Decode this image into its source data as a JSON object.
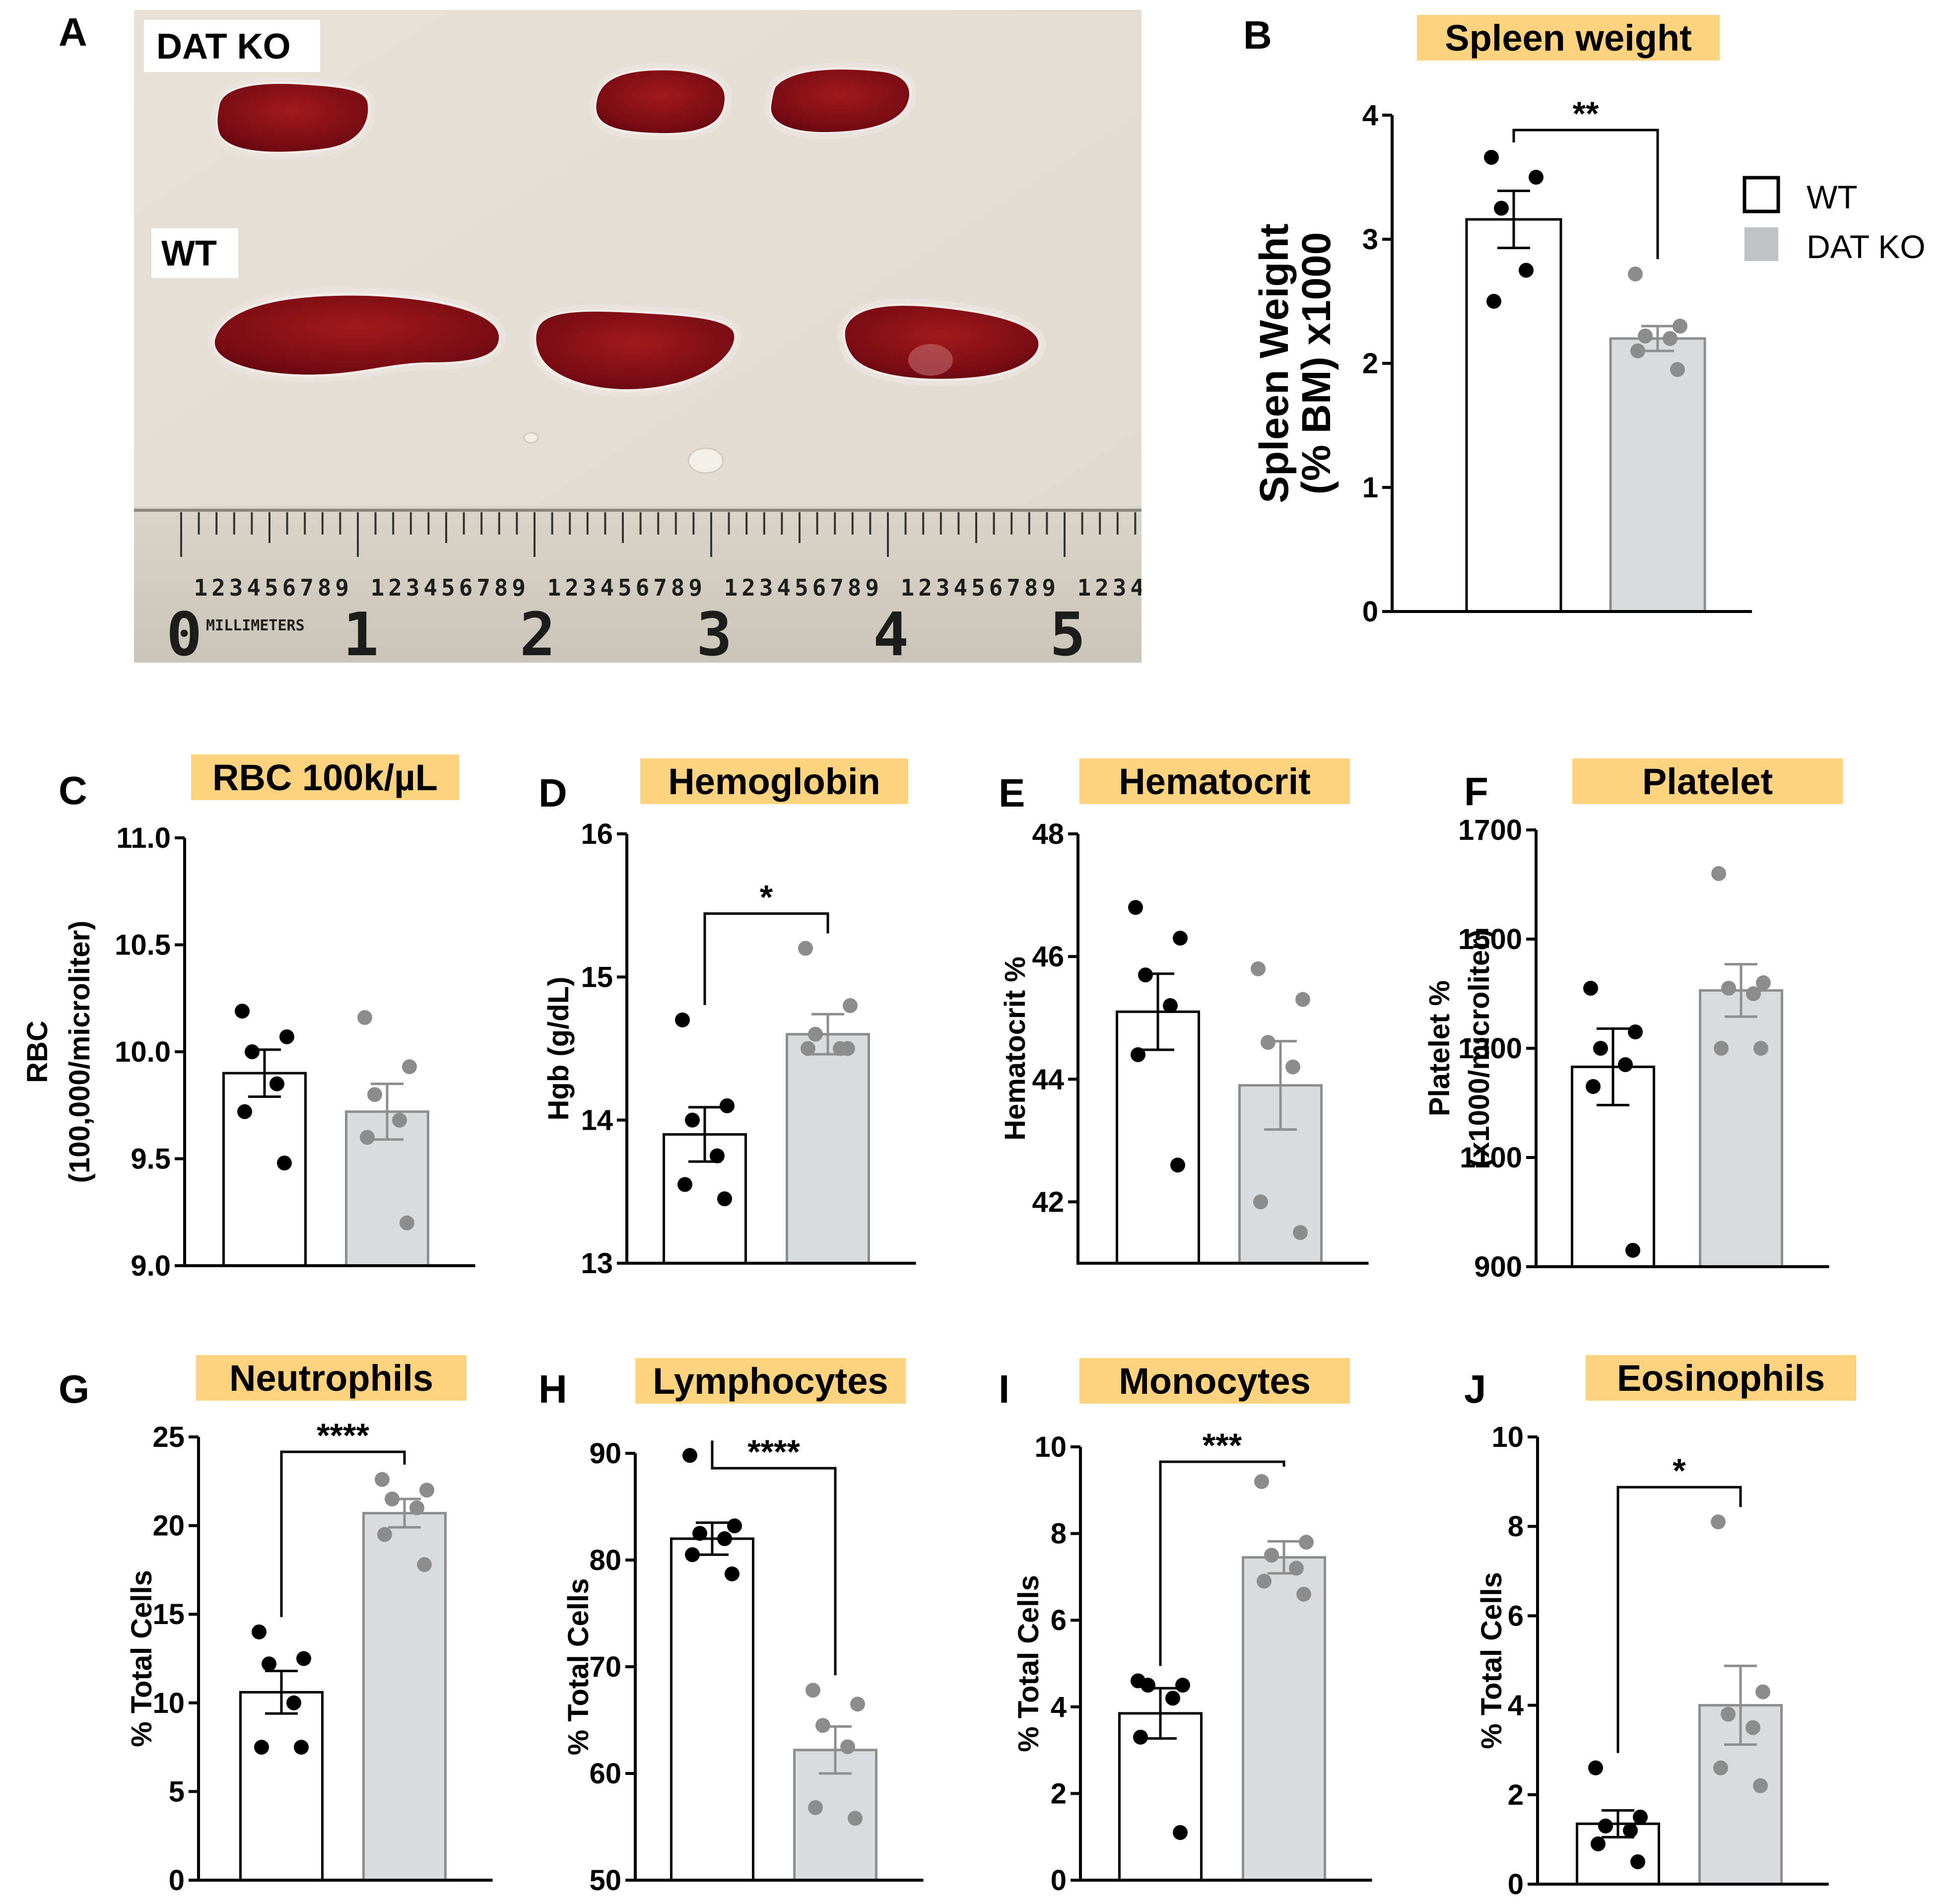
{
  "colors": {
    "wt_fill": "#ffffff",
    "ko_fill": "#d9dcdc",
    "ko_stroke": "#8e8e8e",
    "ko_dot": "#8c8c8c",
    "title_bg": "#fdd27f",
    "axis": "#000000"
  },
  "panel_a": {
    "letter": "A",
    "label_ko": "DAT KO",
    "label_wt": "WT",
    "ruler": {
      "units": "MILLIMETERS",
      "major_labels": [
        "0",
        "1",
        "2",
        "3",
        "4",
        "5"
      ],
      "minor_digits": [
        "1",
        "2",
        "3",
        "4",
        "5",
        "6",
        "7",
        "8",
        "9"
      ]
    }
  },
  "legend": {
    "wt": "WT",
    "ko": "DAT KO"
  },
  "chart_data": [
    {
      "id": "B",
      "letter": "B",
      "type": "bar",
      "title": "Spleen weight",
      "ylabel": [
        "Spleen Weight",
        "(% BM) x1000"
      ],
      "ylim": [
        0,
        4
      ],
      "yticks": [
        0,
        1,
        2,
        3,
        4
      ],
      "ytick_labels": [
        "0",
        "1",
        "2",
        "3",
        "4"
      ],
      "categories": [
        "WT",
        "DAT KO"
      ],
      "series": [
        {
          "name": "WT",
          "mean": 3.16,
          "sem": 0.23,
          "points": [
            3.66,
            3.5,
            3.25,
            2.75,
            2.5
          ]
        },
        {
          "name": "DAT KO",
          "mean": 2.2,
          "sem": 0.1,
          "points": [
            2.72,
            2.3,
            2.22,
            2.2,
            2.1,
            1.95
          ]
        }
      ],
      "significance": "**"
    },
    {
      "id": "C",
      "letter": "C",
      "type": "bar",
      "title": "RBC 100k/µL",
      "ylabel": [
        "RBC",
        "(100,000/microliter)"
      ],
      "ylim": [
        9.0,
        11.0
      ],
      "yticks": [
        9.0,
        9.5,
        10.0,
        10.5,
        11.0
      ],
      "ytick_labels": [
        "9.0",
        "9.5",
        "10.0",
        "10.5",
        "11.0"
      ],
      "categories": [
        "WT",
        "DAT KO"
      ],
      "series": [
        {
          "name": "WT",
          "mean": 9.9,
          "sem": 0.11,
          "points": [
            10.19,
            10.07,
            10.0,
            9.85,
            9.72,
            9.48
          ]
        },
        {
          "name": "DAT KO",
          "mean": 9.72,
          "sem": 0.13,
          "points": [
            10.16,
            9.93,
            9.8,
            9.68,
            9.6,
            9.2
          ]
        }
      ],
      "significance": ""
    },
    {
      "id": "D",
      "letter": "D",
      "type": "bar",
      "title": "Hemoglobin",
      "ylabel": [
        "Hgb (g/dL)"
      ],
      "ylim": [
        13,
        16
      ],
      "yticks": [
        13,
        14,
        15,
        16
      ],
      "ytick_labels": [
        "13",
        "14",
        "15",
        "16"
      ],
      "categories": [
        "WT",
        "DAT KO"
      ],
      "series": [
        {
          "name": "WT",
          "mean": 13.9,
          "sem": 0.19,
          "points": [
            14.7,
            14.1,
            14.0,
            13.75,
            13.55,
            13.45
          ]
        },
        {
          "name": "DAT KO",
          "mean": 14.6,
          "sem": 0.14,
          "points": [
            15.2,
            14.8,
            14.6,
            14.5,
            14.5,
            14.5
          ]
        }
      ],
      "significance": "*"
    },
    {
      "id": "E",
      "letter": "E",
      "type": "bar",
      "title": "Hematocrit",
      "ylabel": [
        "Hematocrit %"
      ],
      "ylim": [
        41,
        48
      ],
      "yticks": [
        42,
        44,
        46,
        48
      ],
      "ytick_labels": [
        "42",
        "44",
        "46",
        "48"
      ],
      "categories": [
        "WT",
        "DAT KO"
      ],
      "series": [
        {
          "name": "WT",
          "mean": 45.1,
          "sem": 0.62,
          "points": [
            46.8,
            46.3,
            45.7,
            45.2,
            44.4,
            42.6
          ]
        },
        {
          "name": "DAT KO",
          "mean": 43.9,
          "sem": 0.72,
          "points": [
            45.8,
            45.3,
            44.6,
            44.2,
            42.0,
            41.5
          ]
        }
      ],
      "significance": ""
    },
    {
      "id": "F",
      "letter": "F",
      "type": "bar",
      "title": "Platelet",
      "ylabel": [
        "Platelet %",
        "(x1000/microliter)"
      ],
      "ylim": [
        900,
        1700
      ],
      "yticks": [
        900,
        1100,
        1300,
        1500,
        1700
      ],
      "ytick_labels": [
        "900",
        "1100",
        "1300",
        "1500",
        "1700"
      ],
      "categories": [
        "WT",
        "DAT KO"
      ],
      "series": [
        {
          "name": "WT",
          "mean": 1266,
          "sem": 70,
          "points": [
            1410,
            1330,
            1300,
            1270,
            1230,
            930
          ]
        },
        {
          "name": "DAT KO",
          "mean": 1406,
          "sem": 48,
          "points": [
            1620,
            1420,
            1410,
            1400,
            1300,
            1300
          ]
        }
      ],
      "significance": ""
    },
    {
      "id": "G",
      "letter": "G",
      "type": "bar",
      "title": "Neutrophils",
      "ylabel": [
        "% Total Cells"
      ],
      "ylim": [
        0,
        25
      ],
      "yticks": [
        0,
        5,
        10,
        15,
        20,
        25
      ],
      "ytick_labels": [
        "0",
        "5",
        "10",
        "15",
        "20",
        "25"
      ],
      "categories": [
        "WT",
        "DAT KO"
      ],
      "series": [
        {
          "name": "WT",
          "mean": 10.6,
          "sem": 1.2,
          "points": [
            14.0,
            12.5,
            12.2,
            10.0,
            7.5,
            7.5
          ]
        },
        {
          "name": "DAT KO",
          "mean": 20.7,
          "sem": 0.8,
          "points": [
            22.6,
            22.0,
            21.5,
            21.0,
            19.5,
            17.8
          ]
        }
      ],
      "significance": "****"
    },
    {
      "id": "H",
      "letter": "H",
      "type": "bar",
      "title": "Lymphocytes",
      "ylabel": [
        "% Total Cells"
      ],
      "ylim": [
        50,
        90
      ],
      "yticks": [
        50,
        60,
        70,
        80,
        90
      ],
      "ytick_labels": [
        "50",
        "60",
        "70",
        "80",
        "90"
      ],
      "categories": [
        "WT",
        "DAT KO"
      ],
      "series": [
        {
          "name": "WT",
          "mean": 82.0,
          "sem": 1.5,
          "points": [
            89.8,
            83.2,
            82.5,
            82.0,
            80.5,
            78.7
          ]
        },
        {
          "name": "DAT KO",
          "mean": 62.2,
          "sem": 2.2,
          "points": [
            67.8,
            66.5,
            64.5,
            62.5,
            56.8,
            55.8
          ]
        }
      ],
      "significance": "****"
    },
    {
      "id": "I",
      "letter": "I",
      "type": "bar",
      "title": "Monocytes",
      "ylabel": [
        "% Total Cells"
      ],
      "ylim": [
        0,
        10
      ],
      "yticks": [
        0,
        2,
        4,
        6,
        8,
        10
      ],
      "ytick_labels": [
        "0",
        "2",
        "4",
        "6",
        "8",
        "10"
      ],
      "categories": [
        "WT",
        "DAT KO"
      ],
      "series": [
        {
          "name": "WT",
          "mean": 3.85,
          "sem": 0.58,
          "points": [
            4.6,
            4.5,
            4.5,
            4.2,
            3.3,
            1.1
          ]
        },
        {
          "name": "DAT KO",
          "mean": 7.45,
          "sem": 0.37,
          "points": [
            9.2,
            7.8,
            7.5,
            7.2,
            6.9,
            6.6
          ]
        }
      ],
      "significance": "***"
    },
    {
      "id": "J",
      "letter": "J",
      "type": "bar",
      "title": "Eosinophils",
      "ylabel": [
        "% Total Cells"
      ],
      "ylim": [
        0,
        10
      ],
      "yticks": [
        0,
        2,
        4,
        6,
        8,
        10
      ],
      "ytick_labels": [
        "0",
        "2",
        "4",
        "6",
        "8",
        "10"
      ],
      "categories": [
        "WT",
        "DAT KO"
      ],
      "series": [
        {
          "name": "WT",
          "mean": 1.35,
          "sem": 0.3,
          "points": [
            2.6,
            1.5,
            1.3,
            1.2,
            0.9,
            0.5
          ]
        },
        {
          "name": "DAT KO",
          "mean": 4.0,
          "sem": 0.88,
          "points": [
            8.1,
            4.3,
            3.8,
            3.5,
            2.6,
            2.2
          ]
        }
      ],
      "significance": "*"
    }
  ]
}
